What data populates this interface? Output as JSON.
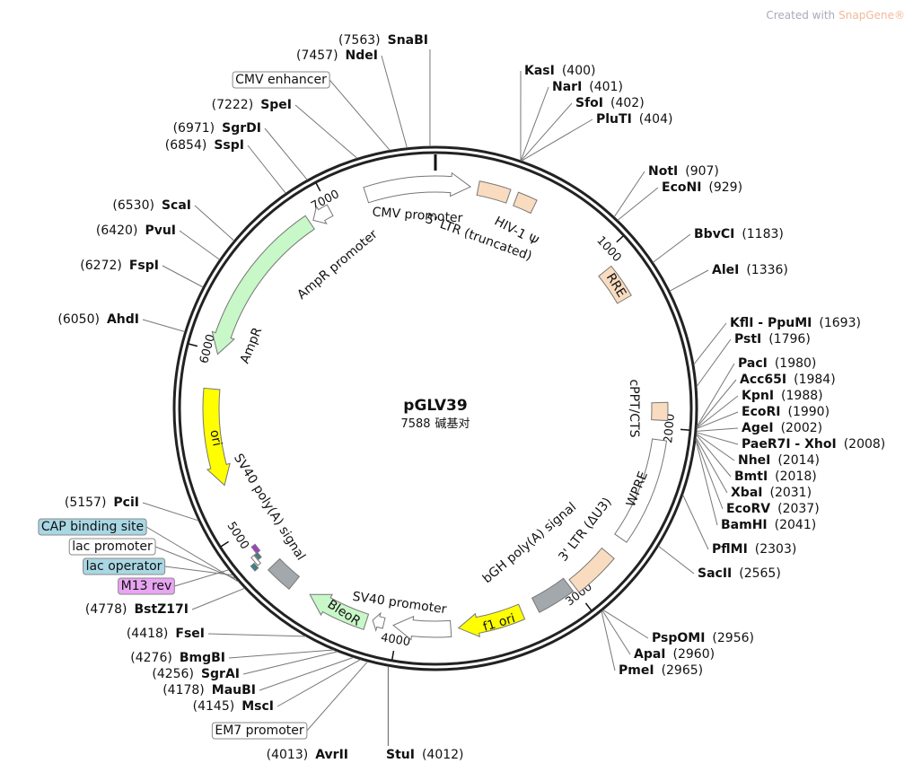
{
  "watermark": {
    "prefix": "Created with",
    "brand": "SnapGene®"
  },
  "plasmid": {
    "name": "pGLV39",
    "size": 7588,
    "size_unit": "碱基对"
  },
  "ticks": [
    1000,
    2000,
    3000,
    4000,
    5000,
    6000,
    7000
  ],
  "enzymes": [
    {
      "name": "SnaBI",
      "position": 7563,
      "position_label": "(7563)"
    },
    {
      "name": "NdeI",
      "position": 7457,
      "position_label": "(7457)"
    },
    {
      "name": "SpeI",
      "position": 7222,
      "position_label": "(7222)"
    },
    {
      "name": "SgrDI",
      "position": 6971,
      "position_label": "(6971)"
    },
    {
      "name": "SspI",
      "position": 6854,
      "position_label": "(6854)"
    },
    {
      "name": "ScaI",
      "position": 6530,
      "position_label": "(6530)"
    },
    {
      "name": "PvuI",
      "position": 6420,
      "position_label": "(6420)"
    },
    {
      "name": "FspI",
      "position": 6272,
      "position_label": "(6272)"
    },
    {
      "name": "AhdI",
      "position": 6050,
      "position_label": "(6050)"
    },
    {
      "name": "PciI",
      "position": 5157,
      "position_label": "(5157)"
    },
    {
      "name": "BstZ17I",
      "position": 4778,
      "position_label": "(4778)"
    },
    {
      "name": "FseI",
      "position": 4418,
      "position_label": "(4418)"
    },
    {
      "name": "BmgBI",
      "position": 4276,
      "position_label": "(4276)"
    },
    {
      "name": "SgrAI",
      "position": 4256,
      "position_label": "(4256)"
    },
    {
      "name": "MauBI",
      "position": 4178,
      "position_label": "(4178)"
    },
    {
      "name": "MscI",
      "position": 4145,
      "position_label": "(4145)"
    },
    {
      "name": "AvrII",
      "position": 4013,
      "position_label": "(4013)"
    },
    {
      "name": "StuI",
      "position": 4012,
      "position_label": "(4012)"
    },
    {
      "name": "KasI",
      "position": 400,
      "position_label": "(400)"
    },
    {
      "name": "NarI",
      "position": 401,
      "position_label": "(401)"
    },
    {
      "name": "SfoI",
      "position": 402,
      "position_label": "(402)"
    },
    {
      "name": "PluTI",
      "position": 404,
      "position_label": "(404)"
    },
    {
      "name": "NotI",
      "position": 907,
      "position_label": "(907)"
    },
    {
      "name": "EcoNI",
      "position": 929,
      "position_label": "(929)"
    },
    {
      "name": "BbvCI",
      "position": 1183,
      "position_label": "(1183)"
    },
    {
      "name": "AleI",
      "position": 1336,
      "position_label": "(1336)"
    },
    {
      "name": "KflI - PpuMI",
      "position": 1693,
      "position_label": "(1693)"
    },
    {
      "name": "PstI",
      "position": 1796,
      "position_label": "(1796)"
    },
    {
      "name": "PacI",
      "position": 1980,
      "position_label": "(1980)"
    },
    {
      "name": "Acc65I",
      "position": 1984,
      "position_label": "(1984)"
    },
    {
      "name": "KpnI",
      "position": 1988,
      "position_label": "(1988)"
    },
    {
      "name": "EcoRI",
      "position": 1990,
      "position_label": "(1990)"
    },
    {
      "name": "AgeI",
      "position": 2002,
      "position_label": "(2002)"
    },
    {
      "name": "PaeR7I - XhoI",
      "position": 2008,
      "position_label": "(2008)"
    },
    {
      "name": "NheI",
      "position": 2014,
      "position_label": "(2014)"
    },
    {
      "name": "BmtI",
      "position": 2018,
      "position_label": "(2018)"
    },
    {
      "name": "XbaI",
      "position": 2031,
      "position_label": "(2031)"
    },
    {
      "name": "EcoRV",
      "position": 2037,
      "position_label": "(2037)"
    },
    {
      "name": "BamHI",
      "position": 2041,
      "position_label": "(2041)"
    },
    {
      "name": "PflMI",
      "position": 2303,
      "position_label": "(2303)"
    },
    {
      "name": "SacII",
      "position": 2565,
      "position_label": "(2565)"
    },
    {
      "name": "PspOMI",
      "position": 2956,
      "position_label": "(2956)"
    },
    {
      "name": "ApaI",
      "position": 2960,
      "position_label": "(2960)"
    },
    {
      "name": "PmeI",
      "position": 2965,
      "position_label": "(2965)"
    }
  ],
  "features": [
    {
      "label": "CMV enhancer"
    },
    {
      "label": "CMV promoter"
    },
    {
      "label": "5' LTR (truncated)"
    },
    {
      "label": "HIV-1 Ψ"
    },
    {
      "label": "RRE"
    },
    {
      "label": "cPPT/CTS"
    },
    {
      "label": "WPRE"
    },
    {
      "label": "3' LTR (ΔU3)"
    },
    {
      "label": "bGH poly(A) signal"
    },
    {
      "label": "f1 ori"
    },
    {
      "label": "SV40 promoter"
    },
    {
      "label": "BleoR"
    },
    {
      "label": "EM7 promoter"
    },
    {
      "label": "SV40 poly(A) signal"
    },
    {
      "label": "CAP binding site"
    },
    {
      "label": "lac promoter"
    },
    {
      "label": "lac operator"
    },
    {
      "label": "M13 rev"
    },
    {
      "label": "ori"
    },
    {
      "label": "AmpR"
    },
    {
      "label": "AmpR promoter"
    }
  ]
}
